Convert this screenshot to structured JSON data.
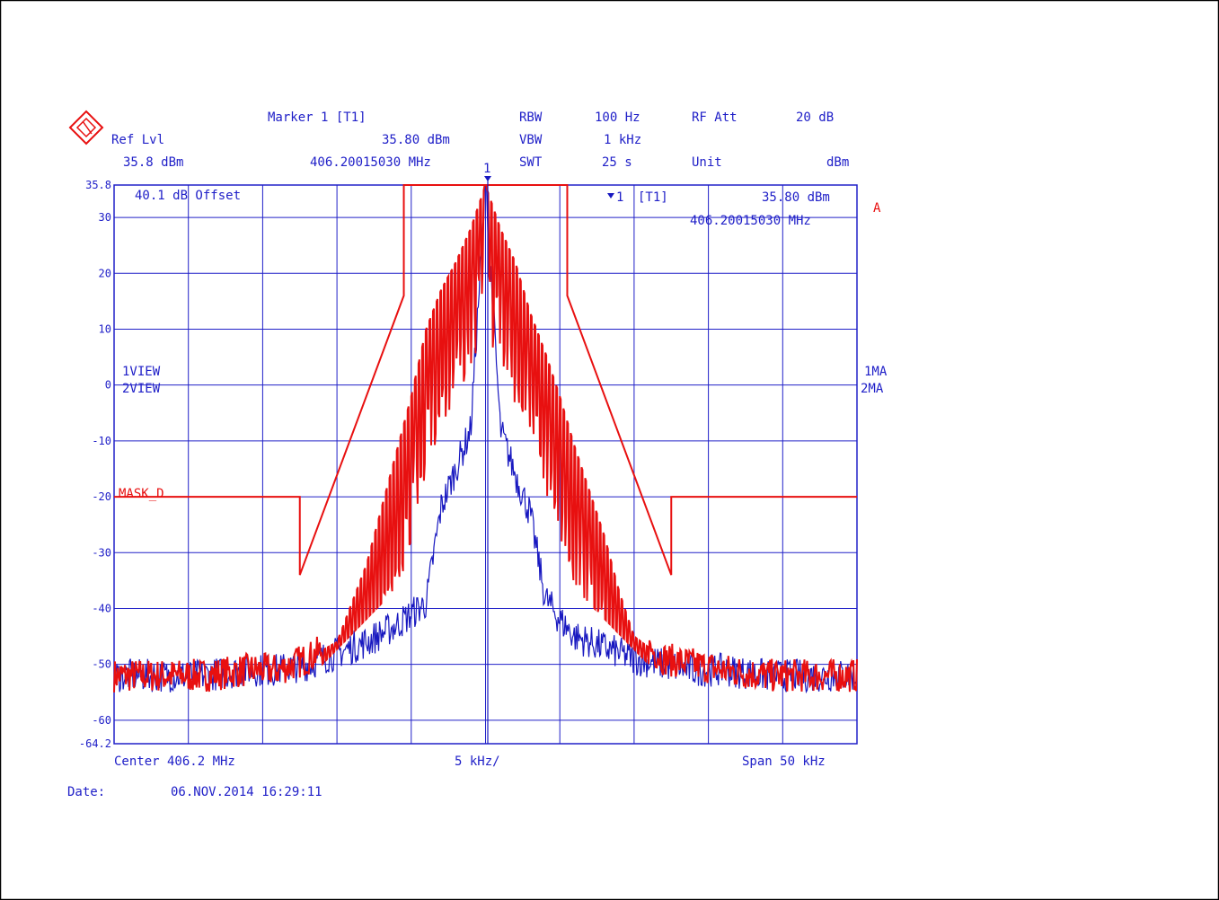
{
  "instrument": {
    "marker_label": "Marker 1 [T1]",
    "marker_level": "35.80 dBm",
    "marker_freq": "406.20015030 MHz",
    "ref_lvl_label": "Ref Lvl",
    "ref_lvl_value": "35.8 dBm",
    "rbw_label": "RBW",
    "rbw_value": "100 Hz",
    "vbw_label": "VBW",
    "vbw_value": "1 kHz",
    "swt_label": "SWT",
    "swt_value": "25 s",
    "rfatt_label": "RF Att",
    "rfatt_value": "20 dB",
    "unit_label": "Unit",
    "unit_value": "dBm",
    "offset_label": "40.1 dB Offset",
    "marker_box_label": "[T1]",
    "marker_box_number": "1",
    "marker_box_level": "35.80 dBm",
    "marker_box_freq": "406.20015030 MHz",
    "marker_flag": "1",
    "trace_tag": "A",
    "view1": "1VIEW",
    "view2": "2VIEW",
    "ma1": "1MA",
    "ma2": "2MA",
    "mask_label": "MASK_D",
    "center": "Center 406.2 MHz",
    "div": "5 kHz/",
    "span": "Span 50 kHz",
    "date_label": "Date:",
    "date_value": "06.NOV.2014  16:29:11"
  },
  "colors": {
    "grid": "#2020c8",
    "trace1": "#e81010",
    "trace2": "#1818c0",
    "mask": "#e81010",
    "text": "#2020c8",
    "mask_text": "#e81010"
  },
  "chart_data": {
    "type": "line",
    "title": "",
    "xlabel": "",
    "ylabel": "",
    "x_unit": "kHz offset from 406.2 MHz",
    "xlim": [
      -25,
      25
    ],
    "ylim": [
      -64.2,
      35.8
    ],
    "y_ticks": [
      "35.8",
      "30",
      "20",
      "10",
      "0",
      "-10",
      "-20",
      "-30",
      "-40",
      "-50",
      "-60",
      "-64.2"
    ],
    "mask": {
      "name": "MASK_D",
      "points": [
        [
          -25,
          -20
        ],
        [
          -12.5,
          -20
        ],
        [
          -12.5,
          -34
        ],
        [
          -5.5,
          16
        ],
        [
          -5.5,
          35.8
        ],
        [
          5.5,
          35.8
        ],
        [
          5.5,
          16
        ],
        [
          12.5,
          -34
        ],
        [
          12.5,
          -20
        ],
        [
          25,
          -20
        ]
      ]
    },
    "series": [
      {
        "name": "1",
        "points": [
          [
            -25,
            -52
          ],
          [
            -22,
            -52
          ],
          [
            -19,
            -52
          ],
          [
            -16,
            -51
          ],
          [
            -14,
            -51
          ],
          [
            -12,
            -49
          ],
          [
            -10,
            -46
          ],
          [
            -9,
            -39
          ],
          [
            -8,
            -32
          ],
          [
            -7,
            -22
          ],
          [
            -6,
            -12
          ],
          [
            -5,
            -2
          ],
          [
            -4,
            10
          ],
          [
            -3,
            17
          ],
          [
            -2,
            22
          ],
          [
            -1,
            28
          ],
          [
            0,
            35.8
          ],
          [
            1,
            28
          ],
          [
            2,
            22
          ],
          [
            3,
            13
          ],
          [
            4,
            6
          ],
          [
            5,
            -2
          ],
          [
            6,
            -11
          ],
          [
            7,
            -19
          ],
          [
            8,
            -27
          ],
          [
            9,
            -37
          ],
          [
            10,
            -45
          ],
          [
            11,
            -47
          ],
          [
            12,
            -49
          ],
          [
            14,
            -50
          ],
          [
            16,
            -51
          ],
          [
            19,
            -52
          ],
          [
            22,
            -52
          ],
          [
            25,
            -52
          ]
        ]
      },
      {
        "name": "2",
        "points": [
          [
            -25,
            -52
          ],
          [
            -22,
            -52
          ],
          [
            -19,
            -52
          ],
          [
            -16,
            -51
          ],
          [
            -14,
            -51
          ],
          [
            -12,
            -50
          ],
          [
            -10,
            -48
          ],
          [
            -8,
            -46
          ],
          [
            -6,
            -43
          ],
          [
            -4,
            -39
          ],
          [
            -3,
            -22
          ],
          [
            -2,
            -15
          ],
          [
            -1,
            -8
          ],
          [
            0,
            35.8
          ],
          [
            1,
            -8
          ],
          [
            2,
            -16
          ],
          [
            3,
            -23
          ],
          [
            4,
            -38
          ],
          [
            5,
            -42
          ],
          [
            6,
            -45
          ],
          [
            8,
            -47
          ],
          [
            10,
            -49
          ],
          [
            12,
            -50
          ],
          [
            14,
            -51
          ],
          [
            16,
            -51
          ],
          [
            19,
            -52
          ],
          [
            22,
            -52
          ],
          [
            25,
            -52
          ]
        ]
      }
    ]
  }
}
